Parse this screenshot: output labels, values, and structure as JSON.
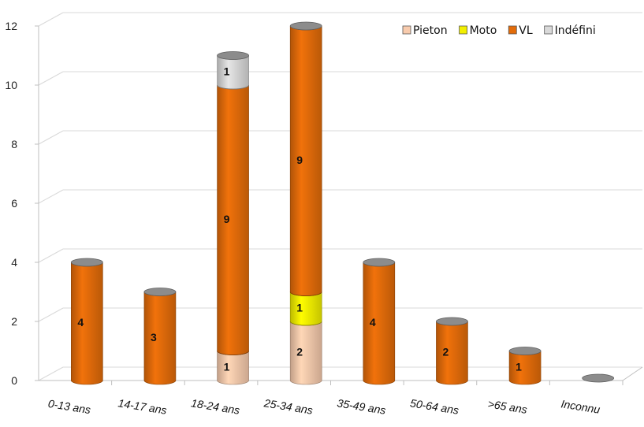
{
  "chart_data": {
    "type": "bar",
    "stacked": true,
    "style": "3d-cylinder",
    "categories": [
      "0-13 ans",
      "14-17 ans",
      "18-24 ans",
      "25-34 ans",
      "35-49 ans",
      "50-64 ans",
      ">65 ans",
      "Inconnu"
    ],
    "series": [
      {
        "name": "Pieton",
        "color": "#f8cbad",
        "values": [
          0,
          0,
          1,
          2,
          0,
          0,
          0,
          0
        ]
      },
      {
        "name": "Moto",
        "color": "#f2ef00",
        "values": [
          0,
          0,
          0,
          1,
          0,
          0,
          0,
          0
        ]
      },
      {
        "name": "VL",
        "color": "#e36c0a",
        "values": [
          4,
          3,
          9,
          9,
          4,
          2,
          1,
          0
        ]
      },
      {
        "name": "Indéfini",
        "color": "#d9d9d9",
        "values": [
          0,
          0,
          1,
          0,
          0,
          0,
          0,
          0
        ]
      }
    ],
    "y_ticks": [
      "0",
      "2",
      "4",
      "6",
      "8",
      "10",
      "12"
    ],
    "ylim": [
      0,
      12
    ],
    "grid": true,
    "legend_position": "top-right",
    "title": "",
    "xlabel": "",
    "ylabel": ""
  }
}
